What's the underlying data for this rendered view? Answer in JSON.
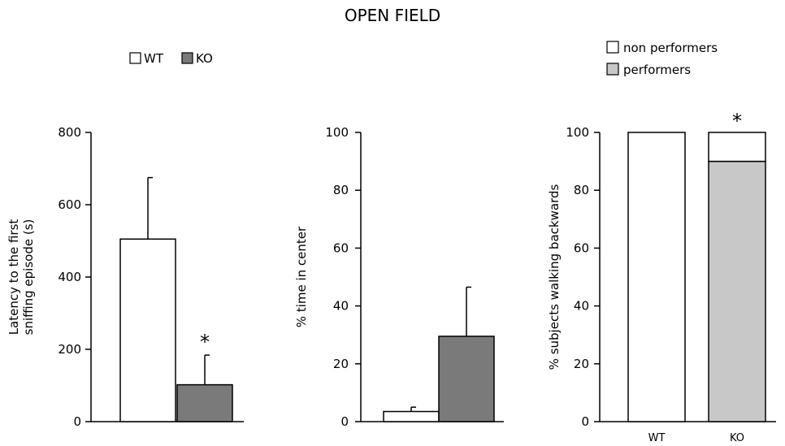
{
  "title": "OPEN FIELD",
  "colors": {
    "wt": "#ffffff",
    "ko": "#7a7a7a",
    "performers": "#c8c8c8",
    "non_performers": "#ffffff",
    "stroke": "#000000"
  },
  "legend_left": {
    "wt": "WT",
    "ko": "KO"
  },
  "legend_right": {
    "non_performers": "non performers",
    "performers": "performers"
  },
  "chart_data": [
    {
      "type": "bar",
      "ylabel_line1": "Latency to the first",
      "ylabel_line2": "sniffing episode (s)",
      "ylim": [
        0,
        800
      ],
      "yticks": [
        "0",
        "200",
        "400",
        "600",
        "800"
      ],
      "categories": [
        "WT",
        "KO"
      ],
      "values": [
        505,
        102
      ],
      "errors": [
        170,
        82
      ],
      "annotations": [
        {
          "category": "KO",
          "text": "*"
        }
      ]
    },
    {
      "type": "bar",
      "ylabel": "% time in center",
      "ylim": [
        0,
        100
      ],
      "yticks": [
        "0",
        "20",
        "40",
        "60",
        "80",
        "100"
      ],
      "categories": [
        "WT",
        "KO"
      ],
      "values": [
        3.5,
        29.5
      ],
      "errors": [
        1.5,
        17
      ],
      "annotations": []
    },
    {
      "type": "bar",
      "stacked": true,
      "ylabel": "% subjects walking backwards",
      "ylim": [
        0,
        100
      ],
      "yticks": [
        "0",
        "20",
        "40",
        "60",
        "80",
        "100"
      ],
      "categories": [
        "WT",
        "KO"
      ],
      "series": [
        {
          "name": "performers",
          "values": [
            0,
            90
          ]
        },
        {
          "name": "non performers",
          "values": [
            100,
            10
          ]
        }
      ],
      "annotations": [
        {
          "category": "KO",
          "text": "*"
        }
      ]
    }
  ]
}
